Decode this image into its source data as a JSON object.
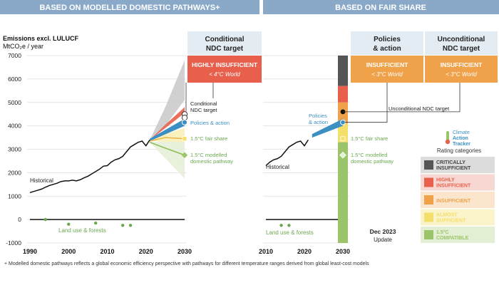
{
  "header": {
    "left_title": "BASED ON MODELLED DOMESTIC PATHWAYS+",
    "right_title": "BASED ON FAIR SHARE"
  },
  "axis": {
    "ylabel_line1": "Emissions excl. LULUCF",
    "ylabel_line2": "MtCO₂e / year"
  },
  "left_panel": {
    "column_header": [
      "Conditional",
      "NDC target"
    ],
    "rating_box": {
      "title": "HIGHLY INSUFFICIENT",
      "subtitle": "< 4°C World",
      "color": "#e8604c"
    },
    "labels": {
      "conditional_ndc": [
        "Conditional",
        "NDC target"
      ],
      "policies": "Policies & action",
      "fair_share": "1.5°C fair share",
      "modelled": [
        "1.5°C modelled",
        "domestic pathway"
      ],
      "historical": "Historical",
      "land_use": "Land use & forests"
    }
  },
  "right_panel": {
    "columns": [
      {
        "header": [
          "Policies",
          "& action"
        ],
        "rating": "INSUFFICIENT",
        "sub": "< 3°C World",
        "color": "#f0a24a"
      },
      {
        "header": [
          "Unconditional",
          "NDC target"
        ],
        "rating": "INSUFFICIENT",
        "sub": "< 3°C World",
        "color": "#f0a24a"
      }
    ],
    "labels": {
      "policies": [
        "Policies",
        "& action"
      ],
      "unconditional_ndc": "Unconditional NDC target",
      "fair_share": "1.5°C fair share",
      "modelled": [
        "1.5°C modelled",
        "domestic pathway"
      ],
      "historical": "Historical",
      "land_use": "Land use & forests"
    },
    "update": [
      "Dec 2023",
      "Update"
    ]
  },
  "legend": {
    "brand": [
      "Climate",
      "Action",
      "Tracker"
    ],
    "title": "Rating categories",
    "items": [
      {
        "label": [
          "CRITICALLY",
          "INSUFFICIENT"
        ],
        "color": "#555555",
        "bg": "#dcdcdc"
      },
      {
        "label": [
          "HIGHLY",
          "INSUFFICIENT"
        ],
        "color": "#e8604c",
        "bg": "#f7d7d1"
      },
      {
        "label": [
          "INSUFFICIENT"
        ],
        "color": "#f0a24a",
        "bg": "#fbe6cd"
      },
      {
        "label": [
          "ALMOST",
          "SUFFICIENT"
        ],
        "color": "#f5df6b",
        "bg": "#fbf3c9"
      },
      {
        "label": [
          "1.5°C",
          "COMPATIBLE"
        ],
        "color": "#9cc46a",
        "bg": "#e2efd2"
      }
    ]
  },
  "footnote": "+ Modelled domestic pathways reflects a global economic efficiency perspective with pathways for different temperature ranges derived from global least-cost models",
  "chart_data": {
    "type": "line",
    "ylim": [
      -1000,
      7000
    ],
    "yticks": [
      -1000,
      0,
      1000,
      2000,
      3000,
      4000,
      5000,
      6000,
      7000
    ],
    "left_xticks": [
      1990,
      2000,
      2010,
      2020,
      2030
    ],
    "right_xticks": [
      2010,
      2020,
      2030
    ],
    "historical": {
      "x": [
        1990,
        1991,
        1992,
        1993,
        1994,
        1995,
        1996,
        1997,
        1998,
        1999,
        2000,
        2001,
        2002,
        2003,
        2004,
        2005,
        2006,
        2007,
        2008,
        2009,
        2010,
        2011,
        2012,
        2013,
        2014,
        2015,
        2016,
        2017,
        2018,
        2019,
        2020,
        2021
      ],
      "y": [
        1150,
        1200,
        1250,
        1300,
        1380,
        1450,
        1500,
        1550,
        1620,
        1650,
        1650,
        1680,
        1650,
        1700,
        1780,
        1850,
        1950,
        2050,
        2150,
        2280,
        2300,
        2450,
        2550,
        2600,
        2700,
        2900,
        3100,
        3200,
        3300,
        3350,
        3150,
        3400
      ]
    },
    "policies_range": {
      "x": [
        2021,
        2030
      ],
      "low": [
        3350,
        4000
      ],
      "high": [
        3450,
        4300
      ]
    },
    "conditional_ndc_range": {
      "x": [
        2021,
        2025,
        2030
      ],
      "low": [
        3400,
        3900,
        4550
      ],
      "high": [
        3400,
        4050,
        4800
      ]
    },
    "critically_range": {
      "x": [
        2021,
        2025,
        2030
      ],
      "low": [
        3400,
        4000,
        5100
      ],
      "high": [
        3400,
        4800,
        6800
      ]
    },
    "fair_share_line": {
      "x": [
        2021,
        2025,
        2030
      ],
      "y": [
        3350,
        3500,
        3450
      ]
    },
    "modelled_line": {
      "x": [
        2021,
        2025,
        2030
      ],
      "y": [
        3300,
        3050,
        2750
      ]
    },
    "modelled_range": {
      "x": [
        2021,
        2030
      ],
      "low": [
        3300,
        1750
      ],
      "high": [
        3300,
        3400
      ]
    },
    "points_2030": {
      "conditional_ndc": 4500,
      "conditional_ndc_2": 4350,
      "policies": 4150,
      "fair_share": 3450,
      "modelled": 2750,
      "unconditional_ndc": 4600
    },
    "land_use": {
      "x": [
        1994,
        2000,
        2007,
        2014,
        2016
      ],
      "y": [
        0,
        -200,
        -150,
        -250,
        -250
      ]
    },
    "fair_share_bar": [
      {
        "from": 5700,
        "to": 7000,
        "color": "#555555"
      },
      {
        "from": 5000,
        "to": 5700,
        "color": "#e8604c"
      },
      {
        "from": 4100,
        "to": 5000,
        "color": "#f0a24a"
      },
      {
        "from": 3300,
        "to": 4100,
        "color": "#f5df6b"
      },
      {
        "from": -1000,
        "to": 3300,
        "color": "#9cc46a"
      }
    ]
  }
}
